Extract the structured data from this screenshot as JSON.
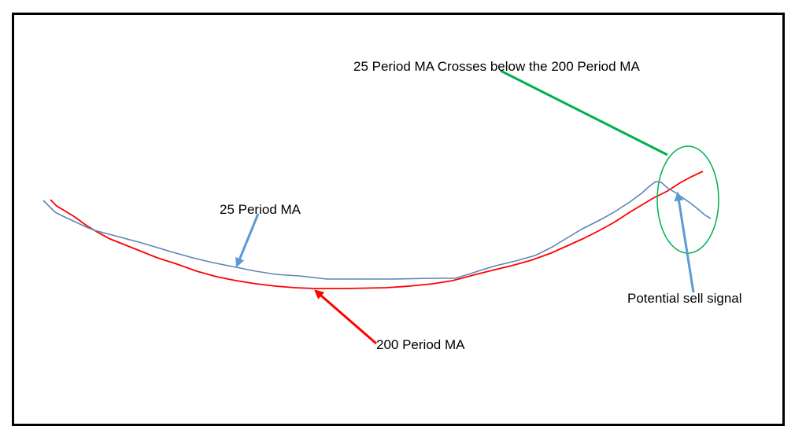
{
  "labels": {
    "crossover_note": "25 Period MA Crosses below the 200 Period MA",
    "ma25": "25 Period MA",
    "ma200": "200 Period MA",
    "sell_signal": "Potential sell signal"
  },
  "colors": {
    "ma25_line": "#5b86b8",
    "ma200_line": "#ff0000",
    "crossover_arrow": "#00b050",
    "ma25_arrow": "#5b9bd5",
    "ma200_arrow": "#ff0000",
    "sell_arrow": "#5b9bd5",
    "circle": "#00b050",
    "frame": "#000000"
  }
}
